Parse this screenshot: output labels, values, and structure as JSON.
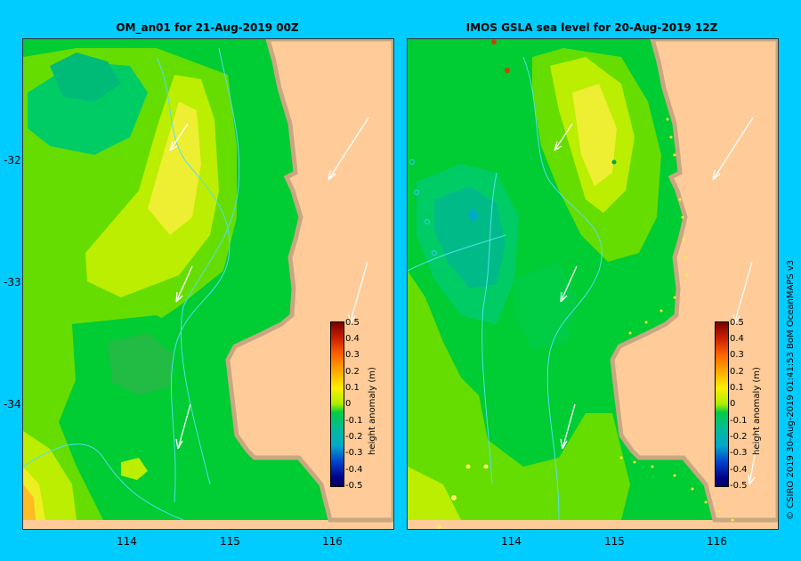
{
  "left_panel": {
    "title": "OM_an01  for 21-Aug-2019 00Z",
    "lat_ticks": [
      "-32",
      "-33",
      "-34"
    ],
    "lon_ticks": [
      "114",
      "115",
      "116"
    ]
  },
  "right_panel": {
    "title": "IMOS  GSLA sea level  for 20-Aug-2019 12Z",
    "lon_ticks": [
      "114",
      "115",
      "116"
    ]
  },
  "colorbar": {
    "label": "height anomaly (m)",
    "ticks": [
      "0.5",
      "0.4",
      "0.3",
      "0.2",
      "0.1",
      "0",
      "-0.1",
      "-0.2",
      "-0.3",
      "-0.4",
      "-0.5"
    ]
  },
  "credit": "© CSIRO 2019   30-Aug-2019 01:41:53 BoM OceanMAPS v3",
  "colors": {
    "background": "#00ccff",
    "land": "#ffcc99",
    "coast": "#c8a882",
    "green": "#00cc33",
    "light_green": "#66dd00",
    "yellow_green": "#bbee00",
    "yellow": "#eeee22",
    "teal": "#00cc88",
    "current_lines": "#55ddee"
  },
  "icons": [
    "wind-arrow-icon",
    "drifter-marker-icon"
  ]
}
